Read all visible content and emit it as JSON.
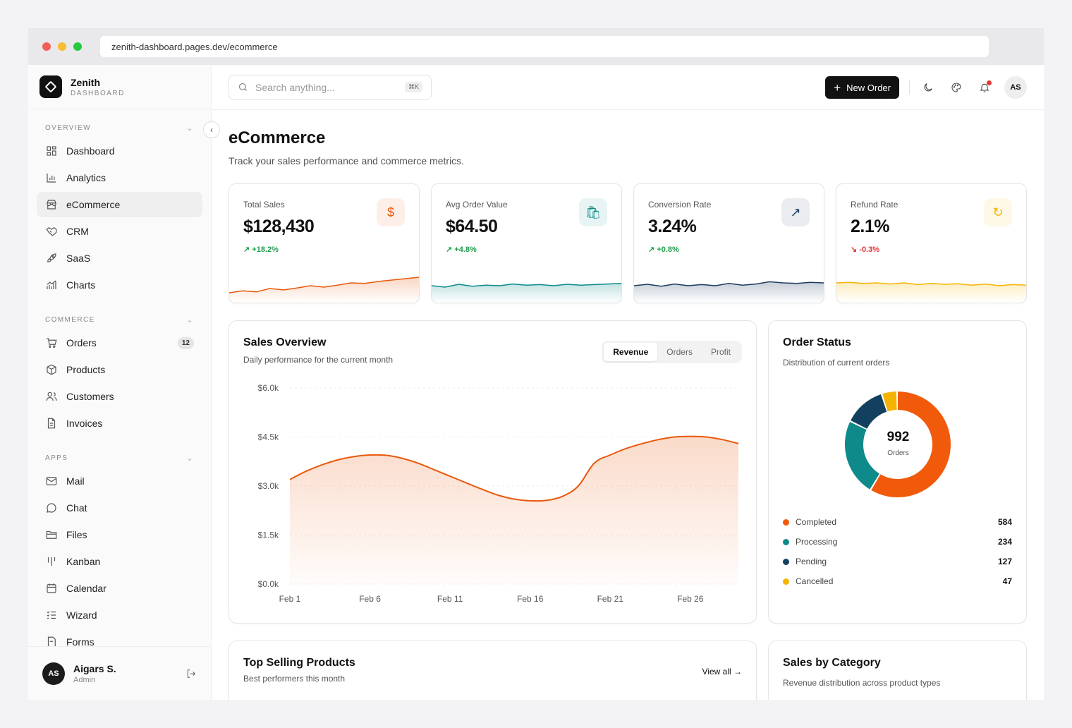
{
  "browser": {
    "url": "zenith-dashboard.pages.dev/ecommerce"
  },
  "brand": {
    "name": "Zenith",
    "subtitle": "DASHBOARD"
  },
  "sidebar": {
    "sections": [
      {
        "label": "OVERVIEW",
        "items": [
          {
            "label": "Dashboard",
            "icon": "grid-icon"
          },
          {
            "label": "Analytics",
            "icon": "bar-chart-icon"
          },
          {
            "label": "eCommerce",
            "icon": "store-icon",
            "active": true
          },
          {
            "label": "CRM",
            "icon": "handshake-icon"
          },
          {
            "label": "SaaS",
            "icon": "rocket-icon"
          },
          {
            "label": "Charts",
            "icon": "chart-icon"
          }
        ]
      },
      {
        "label": "COMMERCE",
        "items": [
          {
            "label": "Orders",
            "icon": "cart-icon",
            "badge": "12"
          },
          {
            "label": "Products",
            "icon": "box-icon"
          },
          {
            "label": "Customers",
            "icon": "users-icon"
          },
          {
            "label": "Invoices",
            "icon": "file-icon"
          }
        ]
      },
      {
        "label": "APPS",
        "items": [
          {
            "label": "Mail",
            "icon": "mail-icon"
          },
          {
            "label": "Chat",
            "icon": "chat-icon"
          },
          {
            "label": "Files",
            "icon": "folder-icon"
          },
          {
            "label": "Kanban",
            "icon": "kanban-icon"
          },
          {
            "label": "Calendar",
            "icon": "calendar-icon"
          },
          {
            "label": "Wizard",
            "icon": "list-check-icon"
          },
          {
            "label": "Forms",
            "icon": "form-icon"
          }
        ]
      }
    ]
  },
  "user": {
    "initials": "AS",
    "name": "Aigars S.",
    "role": "Admin"
  },
  "topbar": {
    "search_placeholder": "Search anything...",
    "search_shortcut": "⌘K",
    "new_order_label": "New Order",
    "avatar_initials": "AS"
  },
  "page": {
    "title": "eCommerce",
    "subtitle": "Track your sales performance and commerce metrics."
  },
  "kpis": [
    {
      "label": "Total Sales",
      "value": "$128,430",
      "delta": "+18.2%",
      "trend": "up",
      "color": "#e8590c",
      "icon": "dollar-icon"
    },
    {
      "label": "Avg Order Value",
      "value": "$64.50",
      "delta": "+4.8%",
      "trend": "up",
      "color": "#0f8a8a",
      "icon": "bag-icon"
    },
    {
      "label": "Conversion Rate",
      "value": "3.24%",
      "delta": "+0.8%",
      "trend": "up",
      "color": "#1e3a5f",
      "icon": "trending-up-icon"
    },
    {
      "label": "Refund Rate",
      "value": "2.1%",
      "delta": "-0.3%",
      "trend": "down",
      "color": "#f5b301",
      "icon": "refresh-icon"
    }
  ],
  "sales_overview": {
    "title": "Sales Overview",
    "subtitle": "Daily performance for the current month",
    "tabs": [
      "Revenue",
      "Orders",
      "Profit"
    ],
    "active_tab": "Revenue"
  },
  "chart_data": {
    "type": "area",
    "x": [
      "Feb 1",
      "Feb 2",
      "Feb 3",
      "Feb 4",
      "Feb 5",
      "Feb 6",
      "Feb 7",
      "Feb 8",
      "Feb 9",
      "Feb 10",
      "Feb 11",
      "Feb 12",
      "Feb 13",
      "Feb 14",
      "Feb 15",
      "Feb 16",
      "Feb 17",
      "Feb 18",
      "Feb 19",
      "Feb 20",
      "Feb 21",
      "Feb 22",
      "Feb 23",
      "Feb 24",
      "Feb 25",
      "Feb 26",
      "Feb 27",
      "Feb 28",
      "Feb 29"
    ],
    "xticks": [
      "Feb 1",
      "Feb 6",
      "Feb 11",
      "Feb 16",
      "Feb 21",
      "Feb 26"
    ],
    "values": [
      3200,
      3450,
      3650,
      3800,
      3900,
      3950,
      3940,
      3850,
      3700,
      3500,
      3300,
      3100,
      2900,
      2720,
      2600,
      2550,
      2560,
      2680,
      3000,
      3700,
      3950,
      4150,
      4300,
      4420,
      4500,
      4520,
      4500,
      4420,
      4300
    ],
    "yticks": [
      "$0.0k",
      "$1.5k",
      "$3.0k",
      "$4.5k",
      "$6.0k"
    ],
    "ylim": [
      0,
      6000
    ],
    "color": "#e8590c",
    "grid": true
  },
  "order_status": {
    "title": "Order Status",
    "subtitle": "Distribution of current orders",
    "total": "992",
    "total_label": "Orders",
    "items": [
      {
        "label": "Completed",
        "value": 584,
        "color": "#f05a0a"
      },
      {
        "label": "Processing",
        "value": 234,
        "color": "#0f8a8a"
      },
      {
        "label": "Pending",
        "value": 127,
        "color": "#12405e"
      },
      {
        "label": "Cancelled",
        "value": 47,
        "color": "#f5b301"
      }
    ]
  },
  "top_products": {
    "title": "Top Selling Products",
    "subtitle": "Best performers this month",
    "view_all": "View all →"
  },
  "sales_by_category": {
    "title": "Sales by Category",
    "subtitle": "Revenue distribution across product types"
  }
}
